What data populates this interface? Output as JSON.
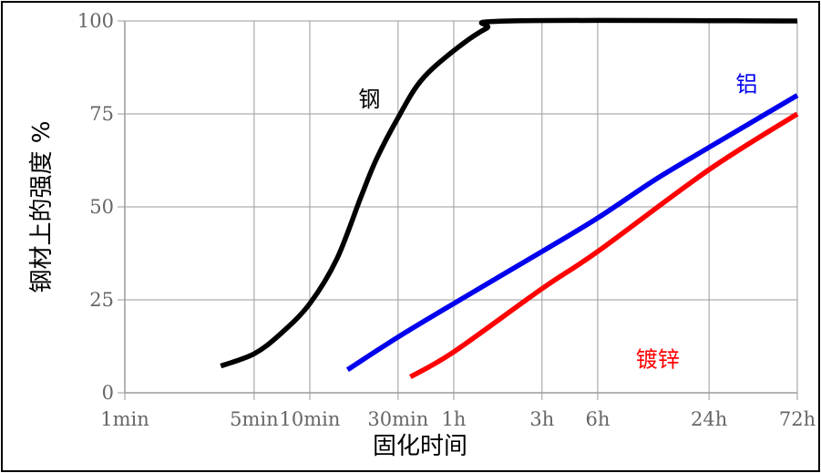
{
  "chart_data": {
    "type": "line",
    "title": "",
    "xlabel": "固化时间",
    "ylabel": "钢材上的强度 %",
    "x_scale": "log",
    "x_unit": "minutes",
    "xlim": [
      1,
      4320
    ],
    "ylim": [
      0,
      100
    ],
    "grid": true,
    "x_ticks": [
      {
        "value": 1,
        "label": "1min"
      },
      {
        "value": 5,
        "label": "5min"
      },
      {
        "value": 10,
        "label": "10min"
      },
      {
        "value": 30,
        "label": "30min"
      },
      {
        "value": 60,
        "label": "1h"
      },
      {
        "value": 180,
        "label": "3h"
      },
      {
        "value": 360,
        "label": "6h"
      },
      {
        "value": 1440,
        "label": "24h"
      },
      {
        "value": 4320,
        "label": "72h"
      }
    ],
    "y_ticks": [
      {
        "value": 0,
        "label": "0"
      },
      {
        "value": 25,
        "label": "25"
      },
      {
        "value": 50,
        "label": "50"
      },
      {
        "value": 75,
        "label": "75"
      },
      {
        "value": 100,
        "label": "100"
      }
    ],
    "series": [
      {
        "name": "钢",
        "color": "#000000",
        "points": [
          [
            3.3,
            7.2
          ],
          [
            5,
            10.5
          ],
          [
            7,
            16
          ],
          [
            10,
            24
          ],
          [
            14,
            36
          ],
          [
            19,
            53
          ],
          [
            23,
            63
          ],
          [
            30,
            74
          ],
          [
            40,
            84
          ],
          [
            60,
            92
          ],
          [
            90,
            98
          ],
          [
            120,
            100
          ],
          [
            4320,
            100
          ]
        ]
      },
      {
        "name": "铝",
        "color": "#0000ee",
        "points": [
          [
            16,
            6.2
          ],
          [
            30,
            15
          ],
          [
            60,
            24
          ],
          [
            180,
            38
          ],
          [
            360,
            47
          ],
          [
            720,
            57
          ],
          [
            1440,
            66
          ],
          [
            4320,
            80
          ]
        ]
      },
      {
        "name": "镀锌",
        "color": "#ff0000",
        "points": [
          [
            35,
            4.3
          ],
          [
            60,
            11
          ],
          [
            180,
            28
          ],
          [
            360,
            38
          ],
          [
            1440,
            60
          ],
          [
            4320,
            75
          ]
        ]
      }
    ],
    "annotations": [
      {
        "text": "钢",
        "series": 0,
        "color": "#000000",
        "x": 21,
        "y": 77
      },
      {
        "text": "铝",
        "series": 1,
        "color": "#0000ee",
        "x": 2300,
        "y": 81
      },
      {
        "text": "镀锌",
        "series": 2,
        "color": "#ff0000",
        "x": 760,
        "y": 7
      }
    ]
  }
}
